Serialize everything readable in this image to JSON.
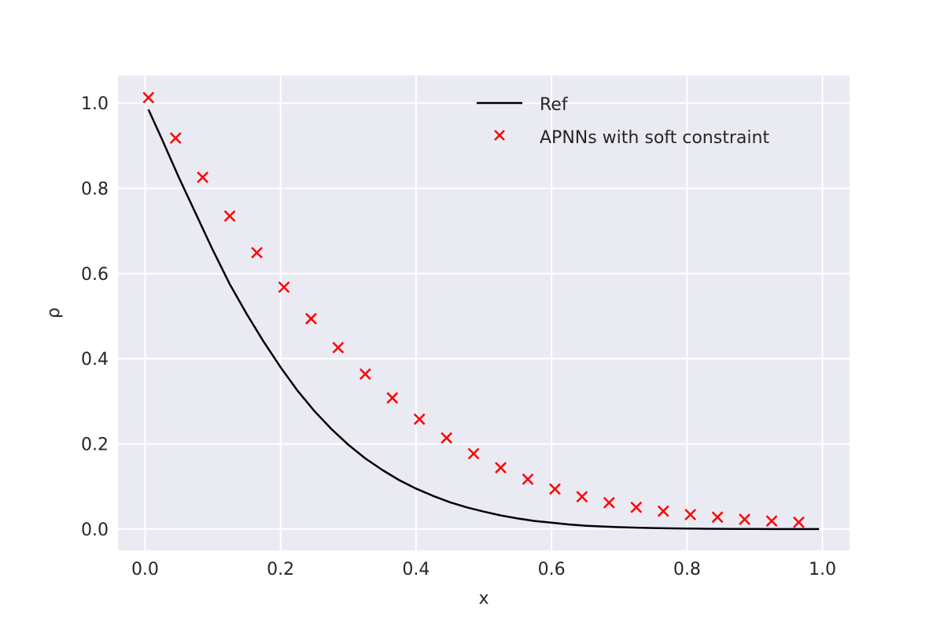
{
  "chart_data": {
    "type": "line",
    "title": "",
    "xlabel": "x",
    "ylabel": "ρ",
    "xlim": [
      -0.04,
      1.04
    ],
    "ylim": [
      -0.05,
      1.065
    ],
    "xticks": [
      0.0,
      0.2,
      0.4,
      0.6,
      0.8,
      1.0
    ],
    "xtick_labels": [
      "0.0",
      "0.2",
      "0.4",
      "0.6",
      "0.8",
      "1.0"
    ],
    "yticks": [
      0.0,
      0.2,
      0.4,
      0.6,
      0.8,
      1.0
    ],
    "ytick_labels": [
      "0.0",
      "0.2",
      "0.4",
      "0.6",
      "0.8",
      "1.0"
    ],
    "grid": true,
    "legend_position": "top-right",
    "colors": {
      "background": "#eaeaf2",
      "grid": "#ffffff",
      "ref": "#000000",
      "apnn": "#ff0000"
    },
    "series": [
      {
        "name": "Ref",
        "kind": "line",
        "x": [
          0.005,
          0.025,
          0.05,
          0.075,
          0.1,
          0.125,
          0.15,
          0.175,
          0.2,
          0.225,
          0.25,
          0.275,
          0.3,
          0.325,
          0.35,
          0.375,
          0.4,
          0.425,
          0.45,
          0.475,
          0.5,
          0.525,
          0.55,
          0.575,
          0.6,
          0.625,
          0.65,
          0.675,
          0.7,
          0.725,
          0.75,
          0.775,
          0.8,
          0.825,
          0.85,
          0.875,
          0.9,
          0.925,
          0.95,
          0.975,
          0.995
        ],
        "y": [
          0.985,
          0.915,
          0.825,
          0.74,
          0.655,
          0.575,
          0.505,
          0.44,
          0.38,
          0.325,
          0.277,
          0.235,
          0.198,
          0.166,
          0.139,
          0.115,
          0.095,
          0.078,
          0.063,
          0.051,
          0.041,
          0.032,
          0.025,
          0.019,
          0.015,
          0.011,
          0.008,
          0.006,
          0.0045,
          0.0033,
          0.0024,
          0.0017,
          0.0012,
          0.0008,
          0.0005,
          0.0003,
          0.0002,
          0.0001,
          5e-05,
          2e-05,
          0.0
        ]
      },
      {
        "name": "APNNs with soft constraint",
        "kind": "scatter",
        "marker": "x",
        "x": [
          0.005,
          0.045,
          0.085,
          0.125,
          0.165,
          0.205,
          0.245,
          0.285,
          0.325,
          0.365,
          0.405,
          0.445,
          0.485,
          0.525,
          0.565,
          0.605,
          0.645,
          0.685,
          0.725,
          0.765,
          0.805,
          0.845,
          0.885,
          0.925,
          0.965
        ],
        "y": [
          1.013,
          0.918,
          0.826,
          0.735,
          0.649,
          0.568,
          0.494,
          0.426,
          0.364,
          0.308,
          0.258,
          0.214,
          0.177,
          0.144,
          0.117,
          0.094,
          0.076,
          0.062,
          0.051,
          0.042,
          0.034,
          0.028,
          0.023,
          0.019,
          0.016
        ]
      }
    ]
  }
}
